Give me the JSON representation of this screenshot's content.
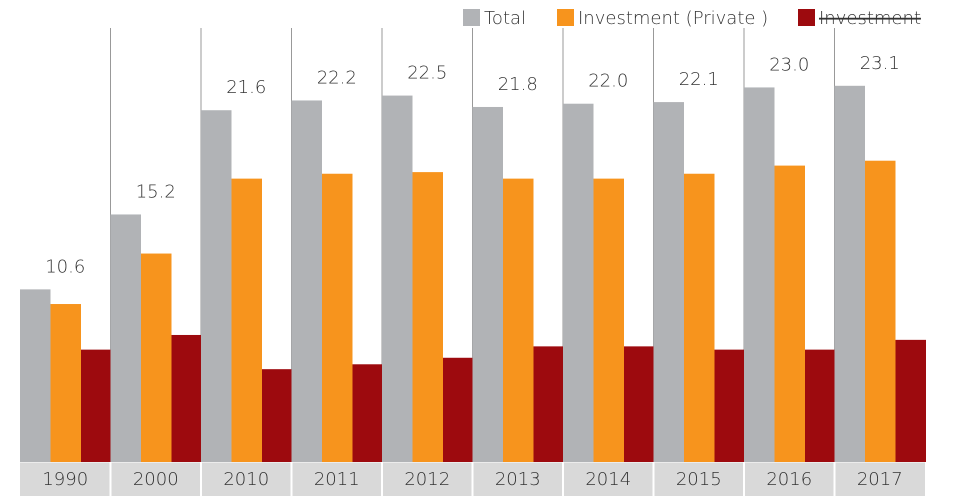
{
  "chart_data": {
    "type": "bar",
    "categories": [
      "1990",
      "2000",
      "2010",
      "2011",
      "2012",
      "2013",
      "2014",
      "2015",
      "2016",
      "2017"
    ],
    "series": [
      {
        "name": "Total",
        "color": "#b1b3b6",
        "values": [
          10.6,
          15.2,
          21.6,
          22.2,
          22.5,
          21.8,
          22.0,
          22.1,
          23.0,
          23.1
        ],
        "value_labels": [
          "10.6",
          "15.2",
          "21.6",
          "22.2",
          "22.5",
          "21.8",
          "22.0",
          "22.1",
          "23.0",
          "23.1"
        ]
      },
      {
        "name": "Investment (Private )",
        "color": "#f7941d",
        "values": [
          9.7,
          12.8,
          17.4,
          17.7,
          17.8,
          17.4,
          17.4,
          17.7,
          18.2,
          18.5
        ]
      },
      {
        "name": "Investment",
        "color": "#9d0a0e",
        "values": [
          6.9,
          7.8,
          5.7,
          6.0,
          6.4,
          7.1,
          7.1,
          6.9,
          6.9,
          7.5
        ]
      }
    ],
    "ylim": [
      0,
      28
    ]
  }
}
